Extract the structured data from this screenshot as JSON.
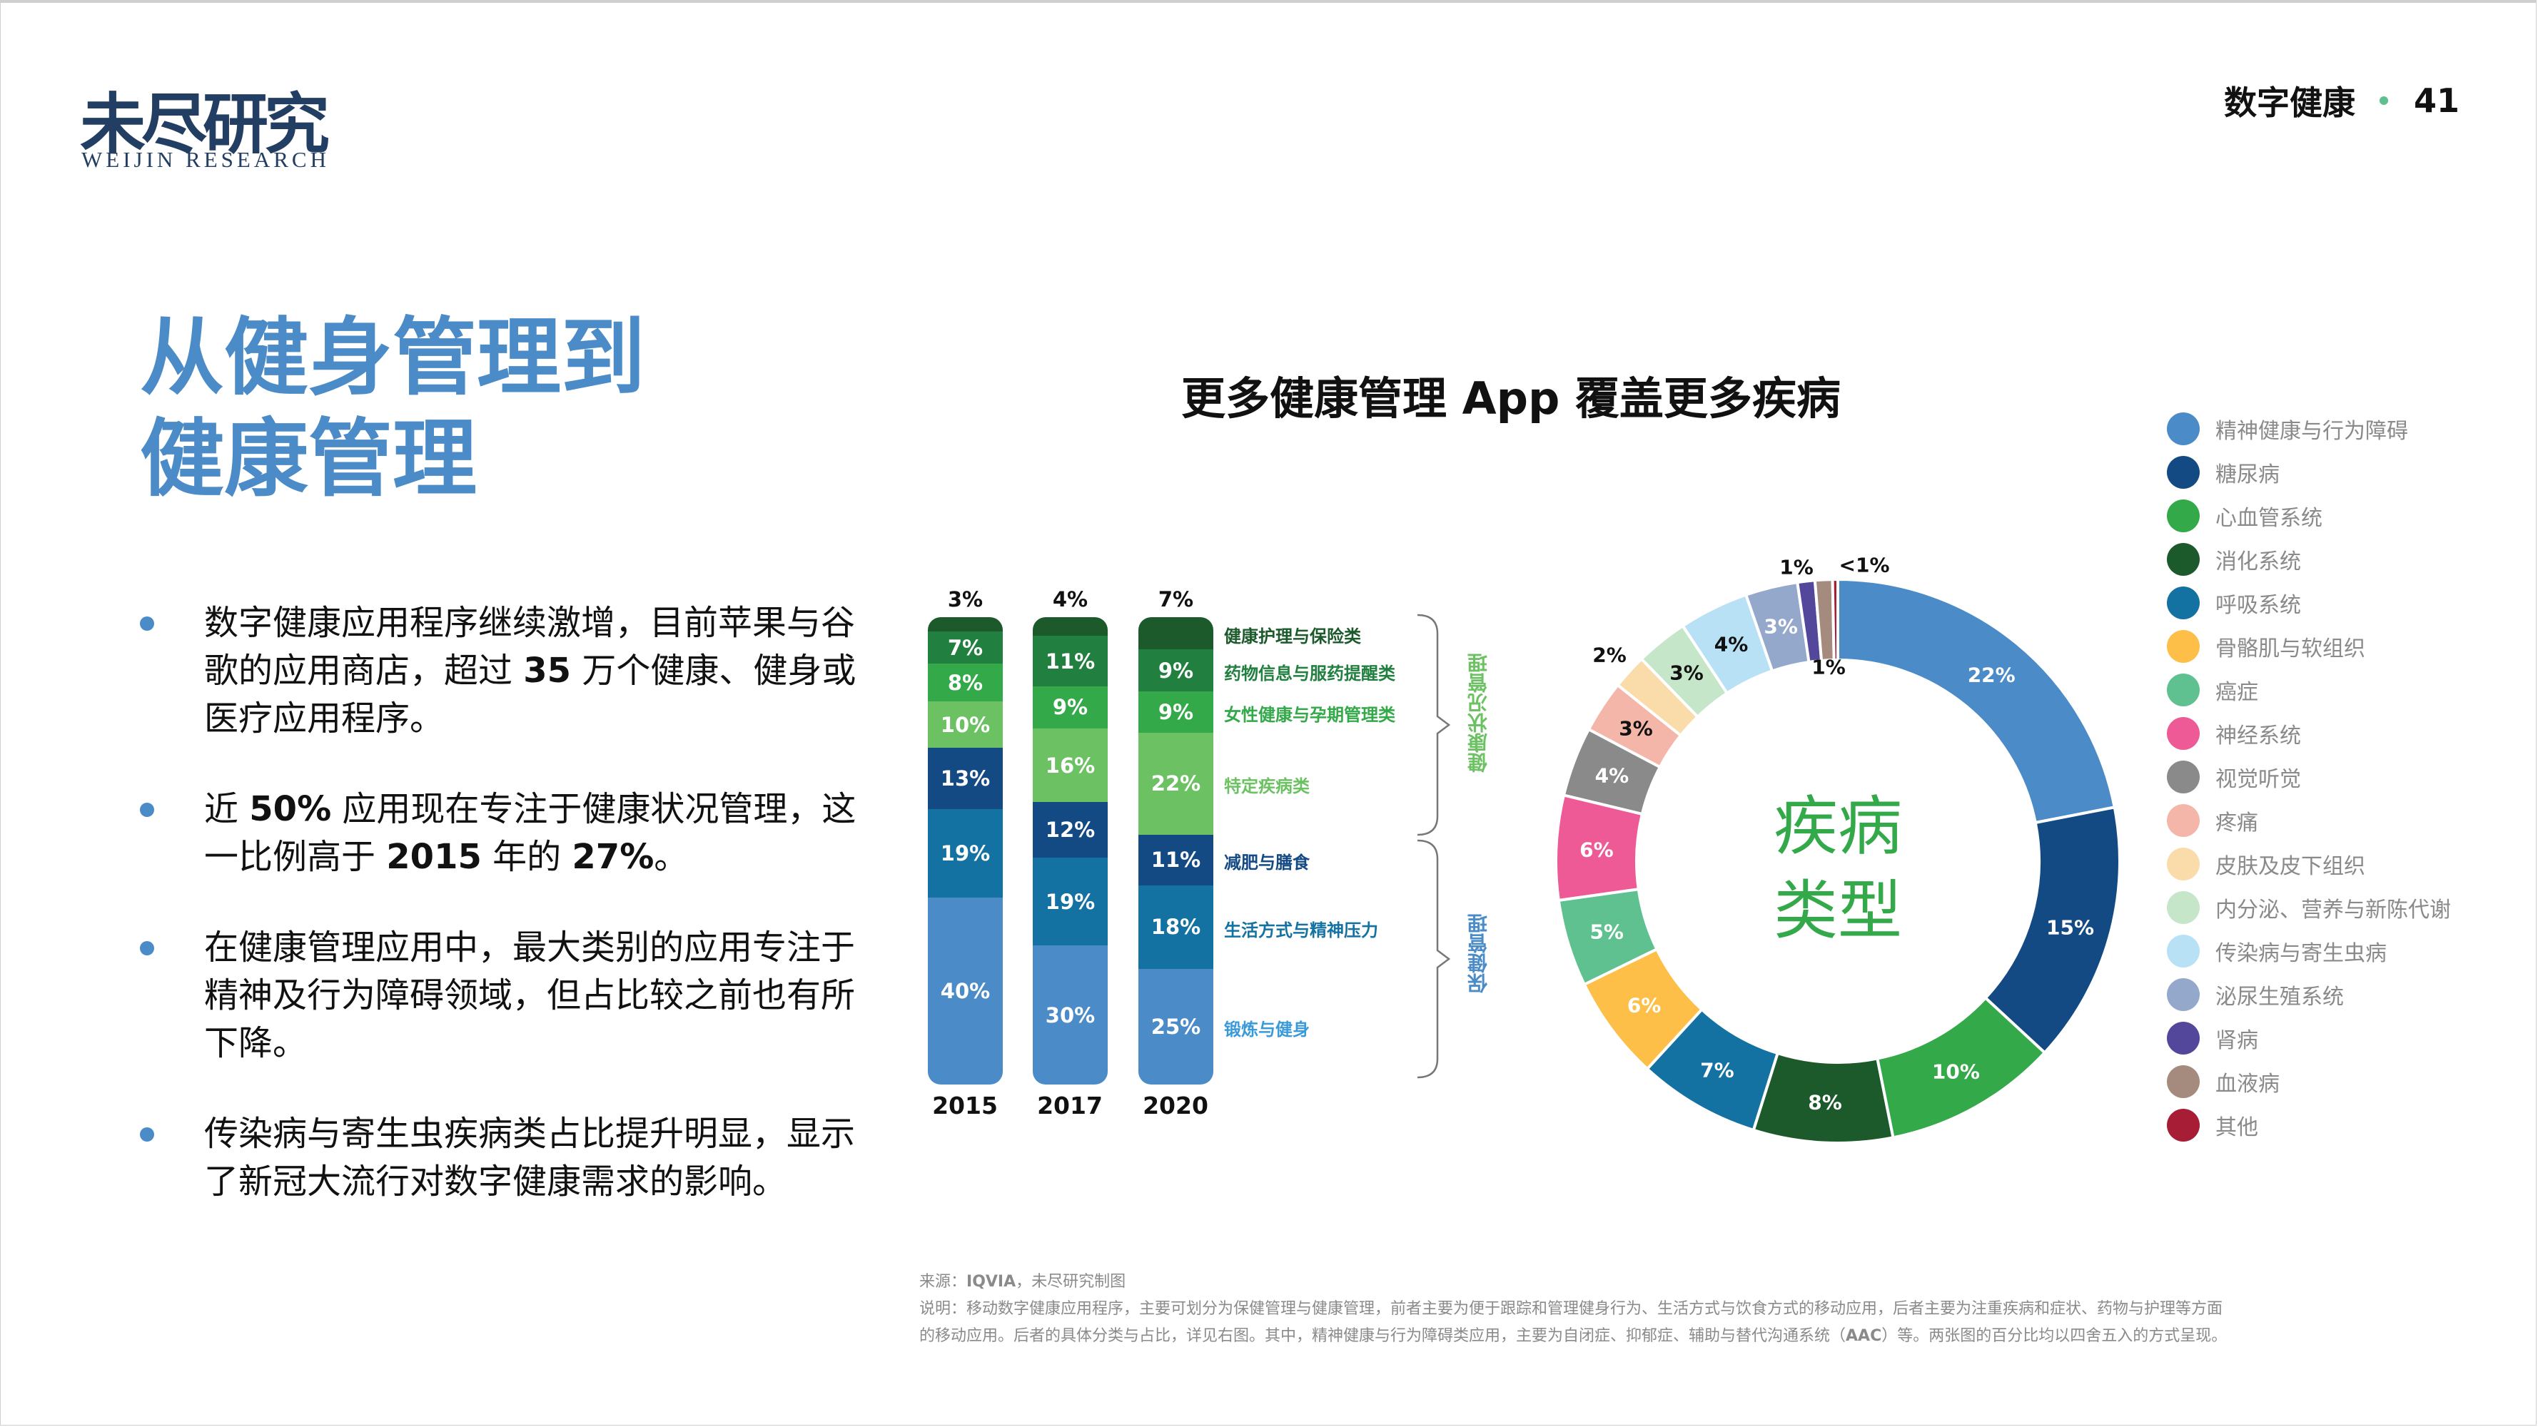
{
  "header": {
    "logo_cn": "未尽研究",
    "logo_en": "WEIJIN RESEARCH",
    "section": "数字健康",
    "page_number": "41",
    "dot_color": "#5ec08e"
  },
  "title": {
    "line1": "从健身管理到",
    "line2": "健康管理",
    "color": "#4a8bc8"
  },
  "bullets": [
    {
      "parts": [
        {
          "t": "数字健康应用程序继续激增，目前苹果与谷歌的应用商店，超过 "
        },
        {
          "t": "35",
          "b": true
        },
        {
          "t": " 万个健康、健身或医疗应用程序。"
        }
      ]
    },
    {
      "parts": [
        {
          "t": "近 "
        },
        {
          "t": "50%",
          "b": true
        },
        {
          "t": " 应用现在专注于健康状况管理，这一比例高于 "
        },
        {
          "t": "2015",
          "b": true
        },
        {
          "t": " 年的 "
        },
        {
          "t": "27%",
          "b": true
        },
        {
          "t": "。"
        }
      ]
    },
    {
      "parts": [
        {
          "t": "在健康管理应用中，最大类别的应用专注于精神及行为障碍领域，但占比较之前也有所下降。"
        }
      ]
    },
    {
      "parts": [
        {
          "t": "传染病与寄生虫疾病类占比提升明显，显示了新冠大流行对数字健康需求的影响。"
        }
      ]
    }
  ],
  "chart_title": "更多健康管理 App 覆盖更多疾病",
  "chart_data": [
    {
      "type": "bar",
      "stacked": true,
      "percent": true,
      "categories": [
        "2015",
        "2017",
        "2020"
      ],
      "series": [
        {
          "name": "锻炼与健身",
          "color": "#4a8bc8",
          "label_color": "#3a9ad9",
          "values": [
            40,
            30,
            25
          ]
        },
        {
          "name": "生活方式与精神压力",
          "color": "#1472a3",
          "label_color": "#1472a3",
          "values": [
            19,
            19,
            18
          ]
        },
        {
          "name": "减肥与膳食",
          "color": "#134a84",
          "label_color": "#134a84",
          "values": [
            13,
            12,
            11
          ]
        },
        {
          "name": "特定疾病类",
          "color": "#6cc163",
          "label_color": "#6cc163",
          "values": [
            10,
            16,
            22
          ]
        },
        {
          "name": "女性健康与孕期管理类",
          "color": "#33a94a",
          "label_color": "#33a94a",
          "values": [
            8,
            9,
            9
          ]
        },
        {
          "name": "药物信息与服药提醒类",
          "color": "#21803f",
          "label_color": "#21803f",
          "values": [
            7,
            11,
            9
          ]
        },
        {
          "name": "健康护理与保险类",
          "color": "#1d5a2b",
          "label_color": "#1d5a2b",
          "values": [
            3,
            4,
            7
          ]
        }
      ],
      "groups": [
        {
          "name": "健康状况管理",
          "color": "#6cc163",
          "members": [
            "健康护理与保险类",
            "药物信息与服药提醒类",
            "女性健康与孕期管理类",
            "特定疾病类"
          ]
        },
        {
          "name": "保健管理",
          "color": "#4a8bc8",
          "members": [
            "减肥与膳食",
            "生活方式与精神压力",
            "锻炼与健身"
          ]
        }
      ]
    },
    {
      "type": "pie",
      "donut": true,
      "center_text": [
        "疾病",
        "类型"
      ],
      "center_color": "#33a94a",
      "slices": [
        {
          "name": "精神健康与行为障碍",
          "value": 22,
          "label": "22%",
          "color": "#4a8bc8",
          "label_color": "#ffffff"
        },
        {
          "name": "糖尿病",
          "value": 15,
          "label": "15%",
          "color": "#134a84",
          "label_color": "#ffffff"
        },
        {
          "name": "心血管系统",
          "value": 10,
          "label": "10%",
          "color": "#33a94a",
          "label_color": "#ffffff"
        },
        {
          "name": "消化系统",
          "value": 8,
          "label": "8%",
          "color": "#1d5a2b",
          "label_color": "#ffffff"
        },
        {
          "name": "呼吸系统",
          "value": 7,
          "label": "7%",
          "color": "#1472a3",
          "label_color": "#ffffff"
        },
        {
          "name": "骨骼肌与软组织",
          "value": 6,
          "label": "6%",
          "color": "#fdbf47",
          "label_color": "#ffffff"
        },
        {
          "name": "癌症",
          "value": 5,
          "label": "5%",
          "color": "#5fc190",
          "label_color": "#ffffff"
        },
        {
          "name": "神经系统",
          "value": 6,
          "label": "6%",
          "color": "#ee5a96",
          "label_color": "#ffffff"
        },
        {
          "name": "视觉听觉",
          "value": 4,
          "label": "4%",
          "color": "#8a8a8a",
          "label_color": "#ffffff"
        },
        {
          "name": "疼痛",
          "value": 3,
          "label": "3%",
          "color": "#f4b6a8",
          "label_color": "#111111"
        },
        {
          "name": "皮肤及皮下组织",
          "value": 2,
          "label": "2%",
          "color": "#fadcab",
          "label_color": "#111111"
        },
        {
          "name": "内分泌、营养与新陈代谢",
          "value": 3,
          "label": "3%",
          "color": "#c6e6c9",
          "label_color": "#111111"
        },
        {
          "name": "传染病与寄生虫病",
          "value": 4,
          "label": "4%",
          "color": "#b9e1f6",
          "label_color": "#111111"
        },
        {
          "name": "泌尿生殖系统",
          "value": 3,
          "label": "3%",
          "color": "#94a8cc",
          "label_color": "#ffffff"
        },
        {
          "name": "肾病",
          "value": 1,
          "label": "1%",
          "color": "#53479c",
          "label_color": "#111111"
        },
        {
          "name": "血液病",
          "value": 1,
          "label": "1%",
          "color": "#a58b7d",
          "label_color": "#111111"
        },
        {
          "name": "其他",
          "value": 0.3,
          "label": "<1%",
          "color": "#a61d35",
          "label_color": "#111111"
        }
      ]
    }
  ],
  "legend_items": [
    {
      "label": "精神健康与行为障碍",
      "color": "#4a8bc8"
    },
    {
      "label": "糖尿病",
      "color": "#134a84"
    },
    {
      "label": "心血管系统",
      "color": "#33a94a"
    },
    {
      "label": "消化系统",
      "color": "#1d5a2b"
    },
    {
      "label": "呼吸系统",
      "color": "#1472a3"
    },
    {
      "label": "骨骼肌与软组织",
      "color": "#fdbf47"
    },
    {
      "label": "癌症",
      "color": "#5fc190"
    },
    {
      "label": "神经系统",
      "color": "#ee5a96"
    },
    {
      "label": "视觉听觉",
      "color": "#8a8a8a"
    },
    {
      "label": "疼痛",
      "color": "#f4b6a8"
    },
    {
      "label": "皮肤及皮下组织",
      "color": "#fadcab"
    },
    {
      "label": "内分泌、营养与新陈代谢",
      "color": "#c6e6c9"
    },
    {
      "label": "传染病与寄生虫病",
      "color": "#b9e1f6"
    },
    {
      "label": "泌尿生殖系统",
      "color": "#94a8cc"
    },
    {
      "label": "肾病",
      "color": "#53479c"
    },
    {
      "label": "血液病",
      "color": "#a58b7d"
    },
    {
      "label": "其他",
      "color": "#a61d35"
    }
  ],
  "footnote": {
    "source_prefix": "来源：",
    "source_bold": "IQVIA",
    "source_suffix": "，未尽研究制图",
    "note_line1": "说明：移动数字健康应用程序，主要可划分为保健管理与健康管理，前者主要为便于跟踪和管理健身行为、生活方式与饮食方式的移动应用，后者主要为注重疾病和症状、药物与护理等方面",
    "note_line2_a": "的移动应用。后者的具体分类与占比，详见右图。其中，精神健康与行为障碍类应用，主要为自闭症、抑郁症、辅助与替代沟通系统（",
    "note_line2_bold": "AAC",
    "note_line2_b": "）等。两张图的百分比均以四舍五入的方式呈现。"
  }
}
